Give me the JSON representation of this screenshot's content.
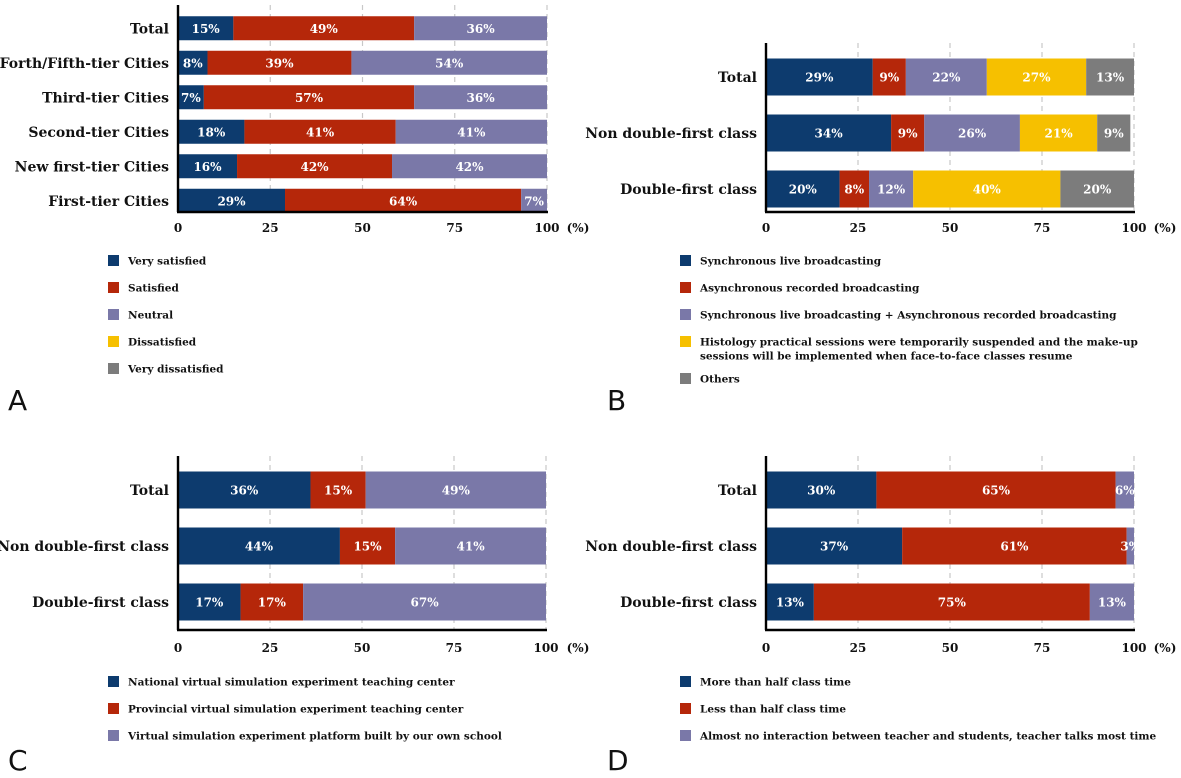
{
  "colors": {
    "very_satisfied": "#0d3b6e",
    "satisfied": "#b5270a",
    "neutral": "#7a78a8",
    "dissatisfied": "#f6c000",
    "very_dissatisfied": "#7c7c7c",
    "grid": "#c8c8c8"
  },
  "chart_data": [
    {
      "type": "bar",
      "orientation": "horizontal",
      "stacked": true,
      "panel_label": "A",
      "categories": [
        "Total",
        "Forth/Fifth-tier Cities",
        "Third-tier Cities",
        "Second-tier Cities",
        "New first-tier Cities",
        "First-tier Cities"
      ],
      "series": [
        {
          "name": "Very satisfied",
          "color_key": "very_satisfied",
          "values": [
            15,
            8,
            7,
            18,
            16,
            29
          ]
        },
        {
          "name": "Satisfied",
          "color_key": "satisfied",
          "values": [
            49,
            39,
            57,
            41,
            42,
            64
          ]
        },
        {
          "name": "Neutral",
          "color_key": "neutral",
          "values": [
            36,
            54,
            36,
            41,
            42,
            7
          ]
        }
      ],
      "xlim": [
        0,
        100
      ],
      "xticks": [
        "0",
        "25",
        "50",
        "75",
        "100"
      ],
      "x_unit": "(%)",
      "legend": [
        "Very satisfied",
        "Satisfied",
        "Neutral",
        "Dissatisfied",
        "Very dissatisfied"
      ],
      "legend_color_keys": [
        "very_satisfied",
        "satisfied",
        "neutral",
        "dissatisfied",
        "very_dissatisfied"
      ],
      "legend_placement": "bottom",
      "grid": true
    },
    {
      "type": "bar",
      "orientation": "horizontal",
      "stacked": true,
      "panel_label": "B",
      "categories": [
        "Total",
        "Non double-first class",
        "Double-first class"
      ],
      "series": [
        {
          "name": "Synchronous live broadcasting",
          "color_key": "very_satisfied",
          "values": [
            29,
            34,
            20
          ]
        },
        {
          "name": "Asynchronous recorded broadcasting",
          "color_key": "satisfied",
          "values": [
            9,
            9,
            8
          ]
        },
        {
          "name": "Synchronous live broadcasting + Asynchronous recorded broadcasting",
          "color_key": "neutral",
          "values": [
            22,
            26,
            12
          ]
        },
        {
          "name": "Histology practical sessions were temporarily suspended and the make-up sessions will be implemented when face-to-face classes resume",
          "color_key": "dissatisfied",
          "values": [
            27,
            21,
            40
          ]
        },
        {
          "name": "Others",
          "color_key": "very_dissatisfied",
          "values": [
            13,
            9,
            20
          ]
        }
      ],
      "xlim": [
        0,
        100
      ],
      "xticks": [
        "0",
        "25",
        "50",
        "75",
        "100"
      ],
      "x_unit": "(%)",
      "legend": [
        "Synchronous live broadcasting",
        "Asynchronous recorded broadcasting",
        "Synchronous live broadcasting + Asynchronous recorded broadcasting",
        "Histology practical sessions were temporarily suspended and the make-up sessions will be implemented when face-to-face classes resume",
        "Others"
      ],
      "legend_color_keys": [
        "very_satisfied",
        "satisfied",
        "neutral",
        "dissatisfied",
        "very_dissatisfied"
      ],
      "legend_placement": "bottom",
      "grid": true
    },
    {
      "type": "bar",
      "orientation": "horizontal",
      "stacked": true,
      "panel_label": "C",
      "categories": [
        "Total",
        "Non double-first class",
        "Double-first class"
      ],
      "series": [
        {
          "name": "National virtual simulation experiment teaching center",
          "color_key": "very_satisfied",
          "values": [
            36,
            44,
            17
          ]
        },
        {
          "name": "Provincial virtual simulation experiment teaching center",
          "color_key": "satisfied",
          "values": [
            15,
            15,
            17
          ]
        },
        {
          "name": "Virtual simulation experiment platform built by our own school",
          "color_key": "neutral",
          "values": [
            49,
            41,
            67
          ]
        }
      ],
      "xlim": [
        0,
        100
      ],
      "xticks": [
        "0",
        "25",
        "50",
        "75",
        "100"
      ],
      "x_unit": "(%)",
      "legend": [
        "National virtual simulation experiment teaching center",
        "Provincial virtual simulation experiment teaching center",
        "Virtual simulation experiment platform built by our own school"
      ],
      "legend_color_keys": [
        "very_satisfied",
        "satisfied",
        "neutral"
      ],
      "legend_placement": "bottom",
      "grid": true
    },
    {
      "type": "bar",
      "orientation": "horizontal",
      "stacked": true,
      "panel_label": "D",
      "categories": [
        "Total",
        "Non double-first class",
        "Double-first class"
      ],
      "series": [
        {
          "name": "More than half class time",
          "color_key": "very_satisfied",
          "values": [
            30,
            37,
            13
          ]
        },
        {
          "name": "Less than half class time",
          "color_key": "satisfied",
          "values": [
            65,
            61,
            75
          ]
        },
        {
          "name": "Almost no interaction between teacher and students, teacher talks most time",
          "color_key": "neutral",
          "values": [
            6,
            3,
            13
          ]
        }
      ],
      "xlim": [
        0,
        100
      ],
      "xticks": [
        "0",
        "25",
        "50",
        "75",
        "100"
      ],
      "x_unit": "(%)",
      "legend": [
        "More than half class time",
        "Less than half class time",
        "Almost no interaction between teacher and students, teacher talks most time"
      ],
      "legend_color_keys": [
        "very_satisfied",
        "satisfied",
        "neutral"
      ],
      "legend_placement": "bottom",
      "grid": true
    }
  ]
}
